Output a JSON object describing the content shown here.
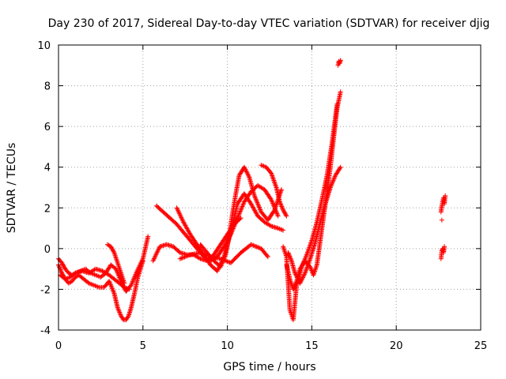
{
  "chart_data": {
    "type": "scatter",
    "title": "Day 230 of 2017, Sidereal Day-to-day VTEC variation (SDTVAR) for receiver djig",
    "xlabel": "GPS time / hours",
    "ylabel": "SDTVAR / TECUs",
    "xlim": [
      0,
      25
    ],
    "ylim": [
      -4,
      10
    ],
    "xticks": [
      0,
      5,
      10,
      15,
      20,
      25
    ],
    "yticks": [
      -4,
      -2,
      0,
      2,
      4,
      6,
      8,
      10
    ],
    "xtick_labels": [
      "0",
      "5",
      "10",
      "15",
      "20",
      "25"
    ],
    "ytick_labels": [
      "-4",
      "-2",
      "0",
      "2",
      "4",
      "6",
      "8",
      "10"
    ],
    "grid": true,
    "marker": "plus",
    "color": "#ff0000",
    "series": [
      {
        "x": [
          0.0,
          0.2,
          0.4,
          0.6,
          0.8,
          1.0,
          1.2,
          1.5,
          1.8,
          2.1,
          2.4,
          2.7,
          3.0,
          3.3,
          3.5,
          3.7,
          3.85,
          4.0,
          4.15,
          4.3,
          4.5,
          4.7,
          5.0
        ],
        "y": [
          -0.8,
          -1.2,
          -1.5,
          -1.7,
          -1.6,
          -1.4,
          -1.3,
          -1.5,
          -1.7,
          -1.8,
          -1.9,
          -1.9,
          -1.6,
          -2.2,
          -2.9,
          -3.3,
          -3.5,
          -3.5,
          -3.3,
          -2.9,
          -2.2,
          -1.4,
          -0.6
        ]
      },
      {
        "x": [
          0.0,
          0.2,
          0.4,
          0.6,
          0.8,
          1.0,
          1.3,
          1.6,
          1.9,
          2.2,
          2.5,
          2.8,
          3.1,
          3.4,
          3.7,
          4.0,
          4.3,
          4.6,
          5.0,
          5.3
        ],
        "y": [
          -0.5,
          -0.7,
          -1.0,
          -1.2,
          -1.3,
          -1.2,
          -1.1,
          -1.0,
          -1.2,
          -1.3,
          -1.4,
          -1.2,
          -0.8,
          -1.0,
          -1.6,
          -2.1,
          -1.8,
          -1.2,
          -0.5,
          0.6
        ]
      },
      {
        "x": [
          0.1,
          0.4,
          0.7,
          1.0,
          1.4,
          1.8,
          2.2,
          2.6,
          3.0,
          3.3,
          3.6,
          3.9,
          4.2
        ],
        "y": [
          -1.3,
          -1.5,
          -1.4,
          -1.2,
          -1.1,
          -1.2,
          -1.0,
          -1.1,
          -1.3,
          -1.5,
          -1.7,
          -1.9,
          -2.0
        ]
      },
      {
        "x": [
          2.9,
          3.1,
          3.3,
          3.5,
          3.7,
          3.9
        ],
        "y": [
          0.2,
          0.1,
          -0.2,
          -0.7,
          -1.2,
          -1.7
        ]
      },
      {
        "x": [
          5.6,
          6.0,
          6.4,
          6.8,
          7.2,
          7.6,
          8.0,
          8.4,
          8.8,
          9.2,
          9.6,
          10.0,
          10.4,
          10.8
        ],
        "y": [
          -0.6,
          0.1,
          0.2,
          0.1,
          -0.2,
          -0.3,
          -0.3,
          -0.5,
          -0.6,
          -0.3,
          0.2,
          0.7,
          1.2,
          1.5
        ]
      },
      {
        "x": [
          5.8,
          6.2,
          6.6,
          7.0,
          7.4,
          7.8,
          8.2,
          8.6,
          9.0,
          9.4,
          9.8,
          10.2,
          10.6,
          11.0,
          11.4,
          11.8,
          12.2,
          12.6,
          13.0
        ],
        "y": [
          2.1,
          1.8,
          1.5,
          1.2,
          0.8,
          0.4,
          0.0,
          -0.4,
          -0.6,
          -0.4,
          0.1,
          0.7,
          1.5,
          2.3,
          2.8,
          3.1,
          2.9,
          2.4,
          1.6
        ]
      },
      {
        "x": [
          7.0,
          7.4,
          7.8,
          8.2,
          8.6,
          9.0,
          9.4,
          9.8,
          10.2,
          10.6,
          11.0,
          11.4,
          11.8,
          12.2,
          12.6,
          13.0,
          13.3
        ],
        "y": [
          2.0,
          1.3,
          0.7,
          0.2,
          -0.3,
          -0.8,
          -1.1,
          -0.4,
          0.8,
          2.2,
          2.7,
          2.2,
          1.6,
          1.3,
          1.1,
          1.0,
          0.9
        ]
      },
      {
        "x": [
          8.4,
          8.8,
          9.2,
          9.6,
          9.9,
          10.1,
          10.3,
          10.5,
          10.7,
          11.0,
          11.3,
          11.6,
          12.0,
          12.4,
          12.8,
          13.2
        ],
        "y": [
          0.2,
          -0.2,
          -0.6,
          -0.9,
          -0.3,
          0.6,
          1.7,
          2.7,
          3.6,
          4.0,
          3.5,
          2.6,
          1.8,
          1.4,
          1.9,
          2.9
        ]
      },
      {
        "x": [
          7.2,
          7.8,
          8.4,
          9.0,
          9.6,
          10.2,
          10.8,
          11.4,
          12.0,
          12.4
        ],
        "y": [
          -0.5,
          -0.3,
          -0.2,
          -0.4,
          -0.5,
          -0.7,
          -0.2,
          0.2,
          0.0,
          -0.4
        ]
      },
      {
        "x": [
          12.0,
          12.3,
          12.6,
          12.9,
          13.1,
          13.3,
          13.5
        ],
        "y": [
          4.1,
          4.0,
          3.7,
          3.0,
          2.3,
          1.9,
          1.6
        ]
      },
      {
        "x": [
          13.5,
          13.7,
          13.9,
          14.1,
          14.3,
          14.6,
          14.9,
          15.1,
          15.3,
          15.5,
          15.7,
          15.9,
          16.1,
          16.3,
          16.5,
          16.7
        ],
        "y": [
          -0.8,
          -1.5,
          -2.0,
          -1.6,
          -1.0,
          -0.6,
          -0.9,
          -1.3,
          -0.8,
          0.4,
          1.6,
          2.8,
          4.0,
          5.5,
          6.9,
          7.7
        ]
      },
      {
        "x": [
          13.6,
          13.8,
          14.0,
          14.3,
          14.6,
          14.9,
          15.2,
          15.5,
          15.8,
          16.1,
          16.4,
          16.7
        ],
        "y": [
          -0.2,
          -0.6,
          -1.2,
          -1.7,
          -1.2,
          -0.5,
          0.3,
          1.3,
          2.2,
          3.0,
          3.6,
          4.0
        ]
      },
      {
        "x": [
          13.3,
          13.5,
          13.7,
          13.9,
          14.1,
          14.4,
          14.7,
          15.0,
          15.3,
          15.6,
          15.9,
          16.2,
          16.5
        ],
        "y": [
          0.1,
          -0.4,
          -3.0,
          -3.5,
          -1.8,
          -0.9,
          -0.3,
          0.4,
          1.3,
          2.4,
          3.6,
          5.2,
          7.1
        ]
      },
      {
        "x": [
          16.55,
          16.6,
          16.65,
          16.7
        ],
        "y": [
          9.0,
          9.2,
          9.1,
          9.25
        ]
      },
      {
        "x": [
          22.65,
          22.7,
          22.75,
          22.8,
          22.85,
          22.9
        ],
        "y": [
          1.8,
          2.1,
          2.3,
          2.5,
          2.2,
          2.6
        ]
      },
      {
        "x": [
          22.65,
          22.7,
          22.75,
          22.8,
          22.85
        ],
        "y": [
          -0.5,
          -0.1,
          0.0,
          -0.2,
          0.1
        ]
      },
      {
        "x": [
          22.7
        ],
        "y": [
          1.4
        ]
      }
    ]
  }
}
